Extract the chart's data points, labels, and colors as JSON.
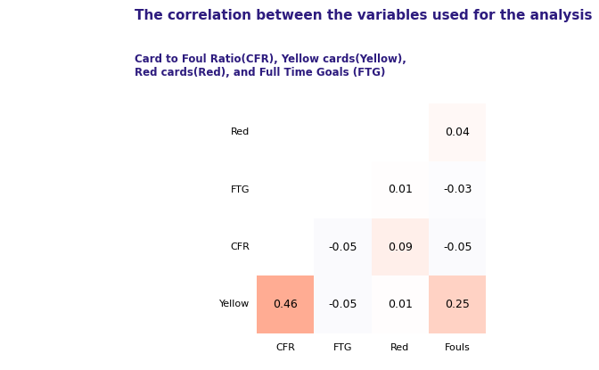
{
  "title": "The correlation between the variables used for the analysis",
  "subtitle": "Card to Foul Ratio(CFR), Yellow cards(Yellow),\nRed cards(Red), and Full Time Goals (FTG)",
  "row_labels": [
    "Red",
    "FTG",
    "CFR",
    "Yellow"
  ],
  "col_labels": [
    "CFR",
    "FTG",
    "Red",
    "Fouls"
  ],
  "values": [
    [
      null,
      null,
      null,
      0.04
    ],
    [
      null,
      null,
      0.01,
      -0.03
    ],
    [
      null,
      -0.05,
      0.09,
      -0.05
    ],
    [
      0.46,
      -0.05,
      0.01,
      0.25
    ]
  ],
  "title_color": "#2d1b7e",
  "subtitle_color": "#2d1b7e",
  "title_fontsize": 11,
  "subtitle_fontsize": 8.5,
  "label_fontsize": 8,
  "value_fontsize": 9,
  "background_color": "#ffffff",
  "vmin": -0.5,
  "vmax": 0.5
}
